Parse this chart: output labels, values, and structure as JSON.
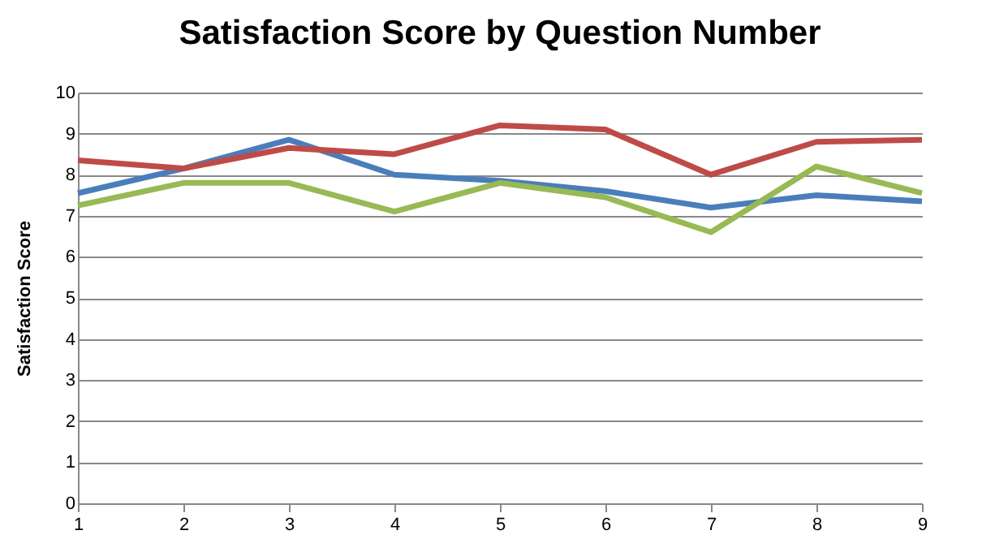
{
  "chart_data": {
    "type": "line",
    "title": "Satisfaction Score by Question Number",
    "ylabel": "Satisfaction Score",
    "x": [
      1,
      2,
      3,
      4,
      5,
      6,
      7,
      8,
      9
    ],
    "series": [
      {
        "color": "#4a7ebb",
        "values": [
          7.55,
          8.15,
          8.85,
          8.0,
          7.85,
          7.6,
          7.2,
          7.5,
          7.35
        ]
      },
      {
        "color": "#be4b48",
        "values": [
          8.35,
          8.15,
          8.65,
          8.5,
          9.2,
          9.1,
          8.0,
          8.8,
          8.85
        ]
      },
      {
        "color": "#98b954",
        "values": [
          7.25,
          7.8,
          7.8,
          7.1,
          7.8,
          7.45,
          6.6,
          8.2,
          7.55
        ]
      }
    ],
    "xlim": [
      1,
      9
    ],
    "xticks": [
      1,
      2,
      3,
      4,
      5,
      6,
      7,
      8,
      9
    ],
    "ylim": [
      0,
      10
    ],
    "yticks": [
      0,
      1,
      2,
      3,
      4,
      5,
      6,
      7,
      8,
      9,
      10
    ],
    "grid": "y",
    "legend": false,
    "marker": "none",
    "line_style": "solid"
  }
}
